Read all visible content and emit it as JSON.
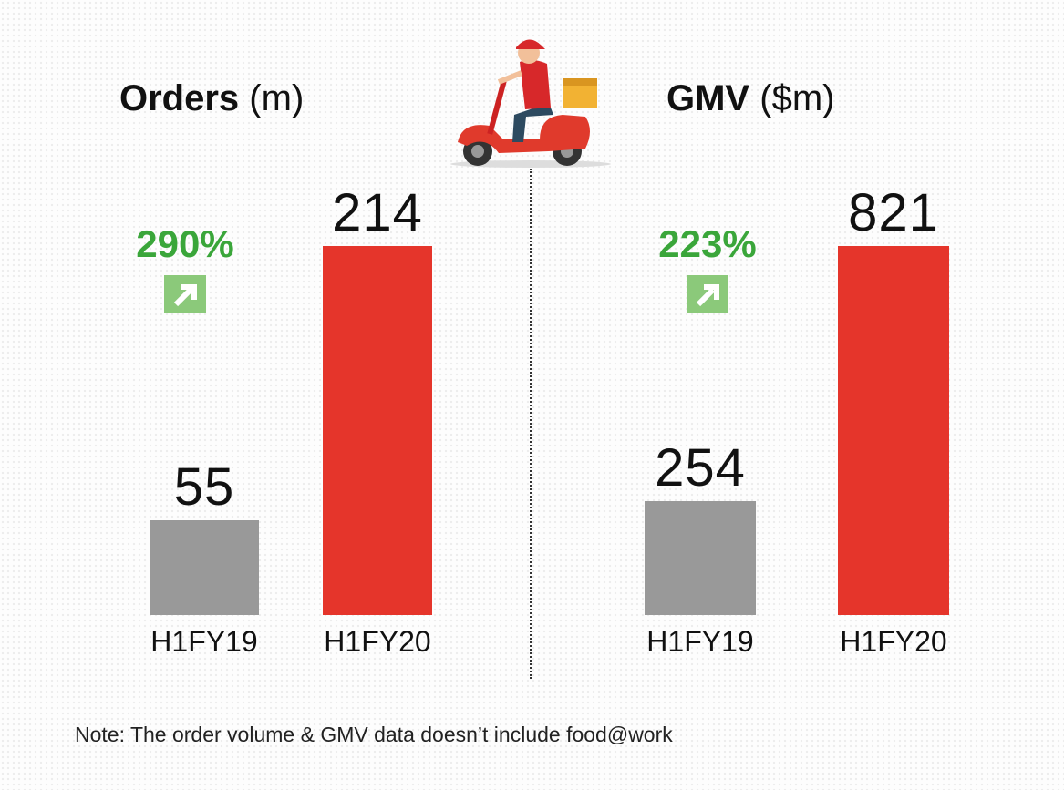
{
  "chart_data": [
    {
      "type": "bar",
      "title_bold": "Orders",
      "title_unit": "(m)",
      "categories": [
        "H1FY19",
        "H1FY20"
      ],
      "values": [
        55,
        214
      ],
      "colors": [
        "#999999",
        "#e5352b"
      ],
      "growth": "290%",
      "ylabel": "",
      "xlabel": ""
    },
    {
      "type": "bar",
      "title_bold": "GMV",
      "title_unit": "($m)",
      "categories": [
        "H1FY19",
        "H1FY20"
      ],
      "values": [
        254,
        821
      ],
      "colors": [
        "#999999",
        "#e5352b"
      ],
      "growth": "223%",
      "ylabel": "",
      "xlabel": ""
    }
  ],
  "note": "Note: The order volume & GMV data doesn’t include food@work",
  "icons": {
    "growth": "arrow-up-right-icon",
    "illustration": "delivery-scooter-icon"
  },
  "accent_green": "#3aa63a"
}
